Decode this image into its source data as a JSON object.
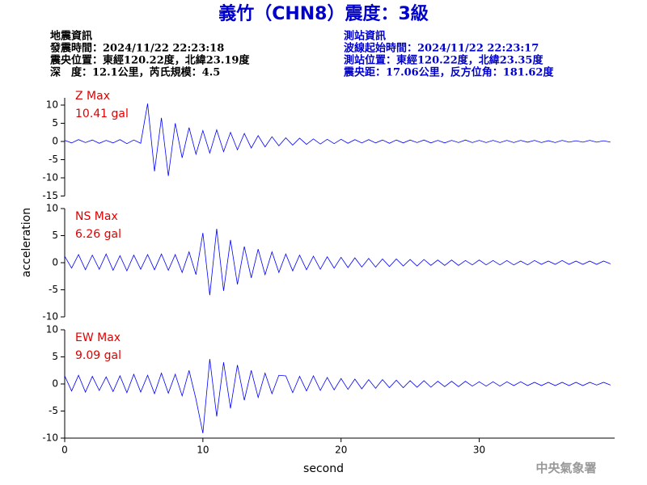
{
  "header": {
    "title": "義竹（CHN8）震度：3級",
    "left": [
      "地震資訊",
      "發震時間：2024/11/22 22:23:18",
      "震央位置：東經120.22度，北緯23.19度",
      "深　度：12.1公里，芮氏規模：4.5"
    ],
    "right": [
      "測站資訊",
      "波線起始時間：2024/11/22 22:23:17",
      "測站位置：東經120.22度，北緯23.35度",
      "震央距：17.06公里，反方位角：181.62度"
    ],
    "footer": "中央氣象署"
  },
  "axes": {
    "ylabel": "acceleration",
    "xlabel": "second",
    "xlim": [
      0,
      39.8
    ],
    "xticks": [
      0,
      10,
      20,
      30
    ],
    "x": [
      0,
      0.5,
      1,
      1.5,
      2,
      2.5,
      3,
      3.5,
      4,
      4.5,
      5,
      5.5,
      6,
      6.5,
      7,
      7.5,
      8,
      8.5,
      9,
      9.5,
      10,
      10.5,
      11,
      11.5,
      12,
      12.5,
      13,
      13.5,
      14,
      14.5,
      15,
      15.5,
      16,
      16.5,
      17,
      17.5,
      18,
      18.5,
      19,
      19.5,
      20,
      20.5,
      21,
      21.5,
      22,
      22.5,
      23,
      23.5,
      24,
      24.5,
      25,
      25.5,
      26,
      26.5,
      27,
      27.5,
      28,
      28.5,
      29,
      29.5,
      30,
      30.5,
      31,
      31.5,
      32,
      32.5,
      33,
      33.5,
      34,
      34.5,
      35,
      35.5,
      36,
      36.5,
      37,
      37.5,
      38,
      38.5,
      39,
      39.5
    ]
  },
  "chart_data": [
    {
      "type": "line",
      "annotation": "Z Max",
      "max_label": "10.41 gal",
      "ylim": [
        -15,
        12
      ],
      "yticks": [
        -15,
        -10,
        -5,
        0,
        5,
        10
      ],
      "series": [
        {
          "color": "#0000ff",
          "values": [
            0.3,
            -0.4,
            0.5,
            -0.3,
            0.4,
            -0.5,
            0.3,
            -0.4,
            0.5,
            -0.6,
            0.4,
            -0.5,
            10.41,
            -8.2,
            6.5,
            -9.5,
            5.0,
            -4.5,
            3.8,
            -3.5,
            3.0,
            -3.2,
            3.2,
            -2.8,
            2.5,
            -2.3,
            2.2,
            -1.8,
            1.6,
            -1.5,
            1.3,
            -1.2,
            1.0,
            -1.0,
            0.9,
            -0.8,
            0.7,
            -0.7,
            0.6,
            -0.6,
            0.6,
            -0.5,
            0.5,
            -0.4,
            0.5,
            -0.4,
            0.4,
            -0.5,
            0.4,
            -0.4,
            0.4,
            -0.3,
            0.4,
            -0.4,
            0.3,
            -0.4,
            0.3,
            -0.3,
            0.4,
            -0.3,
            0.3,
            -0.3,
            0.3,
            -0.3,
            0.3,
            -0.3,
            0.3,
            -0.2,
            0.3,
            -0.3,
            0.2,
            -0.3,
            0.3,
            -0.2,
            0.2,
            -0.2,
            0.3,
            -0.2,
            0.2,
            -0.2
          ]
        }
      ]
    },
    {
      "type": "line",
      "annotation": "NS Max",
      "max_label": "6.26 gal",
      "ylim": [
        -10,
        10
      ],
      "yticks": [
        -10,
        -5,
        0,
        5,
        10
      ],
      "series": [
        {
          "color": "#0000ff",
          "values": [
            1.2,
            -1.0,
            1.5,
            -1.3,
            1.4,
            -1.2,
            1.6,
            -1.4,
            1.3,
            -1.5,
            1.4,
            -1.2,
            1.5,
            -1.3,
            1.6,
            -1.4,
            1.5,
            -1.8,
            2.0,
            -2.2,
            5.5,
            -6.0,
            6.26,
            -5.2,
            4.2,
            -4.0,
            3.0,
            -2.8,
            2.5,
            -2.2,
            2.0,
            -1.8,
            1.6,
            -1.5,
            1.4,
            -1.3,
            1.2,
            -1.2,
            1.1,
            -1.0,
            1.0,
            -0.9,
            0.9,
            -0.8,
            0.8,
            -0.8,
            0.7,
            -0.7,
            0.7,
            -0.6,
            0.6,
            -0.6,
            0.6,
            -0.5,
            0.5,
            -0.5,
            0.5,
            -0.5,
            0.4,
            -0.4,
            0.5,
            -0.4,
            0.4,
            -0.4,
            0.4,
            -0.4,
            0.3,
            -0.4,
            0.4,
            -0.3,
            0.3,
            -0.3,
            0.4,
            -0.3,
            0.3,
            -0.3,
            0.3,
            -0.3,
            0.3,
            -0.2
          ]
        }
      ]
    },
    {
      "type": "line",
      "annotation": "EW Max",
      "max_label": "9.09 gal",
      "ylim": [
        -10,
        10
      ],
      "yticks": [
        -10,
        -5,
        0,
        5,
        10
      ],
      "series": [
        {
          "color": "#0000ff",
          "values": [
            1.5,
            -1.3,
            1.6,
            -1.5,
            1.4,
            -1.2,
            1.3,
            -1.4,
            1.5,
            -1.6,
            1.8,
            -1.5,
            1.6,
            -1.8,
            2.0,
            -1.7,
            1.8,
            -2.2,
            2.5,
            -2.8,
            -9.09,
            4.6,
            -6.0,
            4.0,
            -4.5,
            3.5,
            -3.0,
            2.5,
            -2.5,
            2.0,
            -1.8,
            1.6,
            1.5,
            -1.6,
            1.4,
            -1.3,
            1.5,
            -1.2,
            1.2,
            -1.1,
            1.0,
            -1.0,
            0.9,
            -0.9,
            0.8,
            -0.8,
            0.8,
            -0.7,
            0.7,
            -0.7,
            0.6,
            -0.6,
            0.6,
            -0.6,
            0.5,
            -0.5,
            0.5,
            -0.5,
            0.5,
            -0.4,
            0.4,
            -0.4,
            0.4,
            -0.4,
            0.4,
            -0.3,
            0.4,
            -0.3,
            0.3,
            -0.3,
            0.3,
            -0.3,
            0.3,
            -0.3,
            0.3,
            -0.3,
            0.3,
            -0.2,
            0.3,
            -0.2
          ]
        }
      ]
    }
  ]
}
